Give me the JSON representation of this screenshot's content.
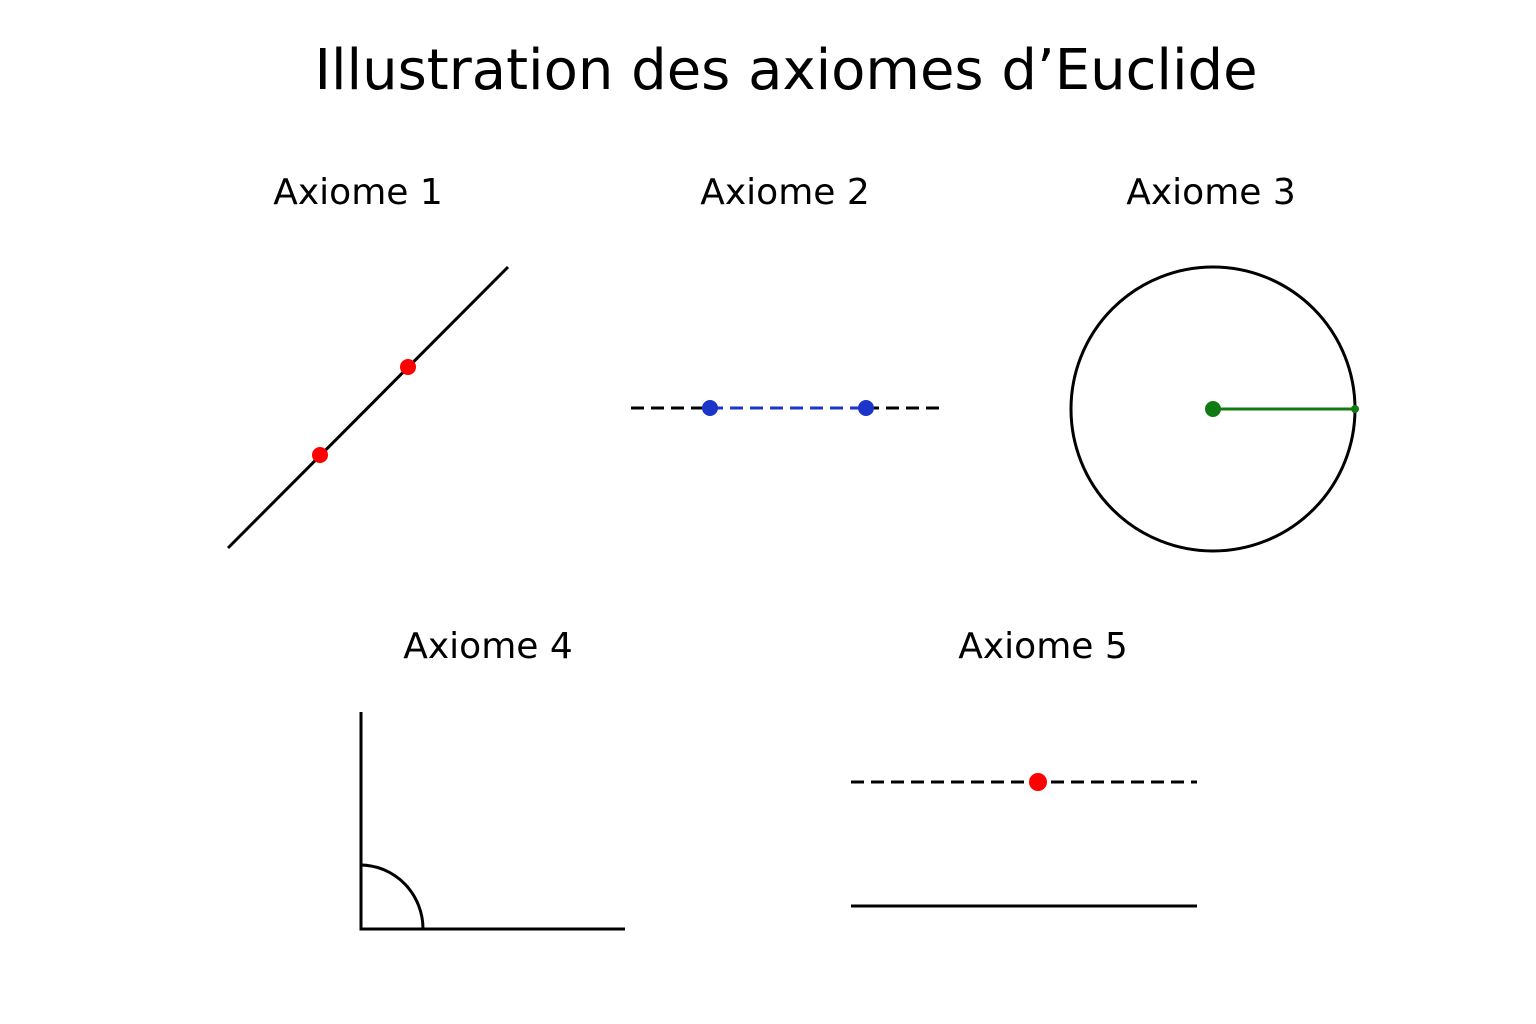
{
  "title": "Illustration des axiomes d’Euclide",
  "panels": [
    {
      "label": "Axiome 1"
    },
    {
      "label": "Axiome 2"
    },
    {
      "label": "Axiome 3"
    },
    {
      "label": "Axiome 4"
    },
    {
      "label": "Axiome 5"
    }
  ],
  "colors": {
    "line": "#000000",
    "axiom1_points": "#ff0000",
    "axiom2_segment": "#1a35c8",
    "axiom3_radius": "#127a12",
    "axiom5_point": "#ff0000"
  }
}
